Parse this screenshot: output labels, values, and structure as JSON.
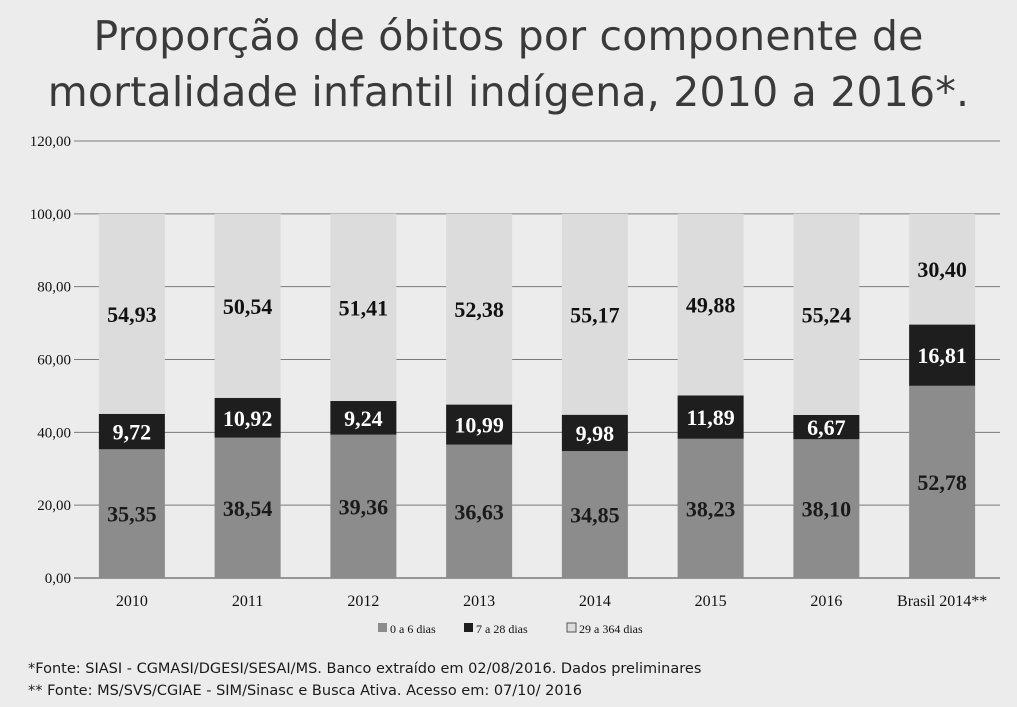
{
  "title_line1": "Proporção de óbitos por componente de",
  "title_line2": "mortalidade infantil indígena, 2010 a 2016*.",
  "footnotes": [
    "*Fonte: SIASI - CGMASI/DGESI/SESAI/MS. Banco extraído em 02/08/2016. Dados preliminares",
    "** Fonte: MS/SVS/CGIAE - SIM/Sinasc e Busca Ativa. Acesso em:  07/10/ 2016"
  ],
  "colors": {
    "series1": "#8c8c8c",
    "series2": "#1e1e1e",
    "series3": "#dcdcdc",
    "grid": "#7a7a7a"
  },
  "chart_data": {
    "type": "bar",
    "stacked": true,
    "categories": [
      "2010",
      "2011",
      "2012",
      "2013",
      "2014",
      "2015",
      "2016",
      "Brasil 2014**"
    ],
    "series": [
      {
        "name": "0 a 6 dias",
        "values": [
          35.35,
          38.54,
          39.36,
          36.63,
          34.85,
          38.23,
          38.1,
          52.78
        ],
        "labels": [
          "35,35",
          "38,54",
          "39,36",
          "36,63",
          "34,85",
          "38,23",
          "38,10",
          "52,78"
        ]
      },
      {
        "name": "7 a 28 dias",
        "values": [
          9.72,
          10.92,
          9.24,
          10.99,
          9.98,
          11.89,
          6.67,
          16.81
        ],
        "labels": [
          "9,72",
          "10,92",
          "9,24",
          "10,99",
          "9,98",
          "11,89",
          "6,67",
          "16,81"
        ]
      },
      {
        "name": "29 a 364 dias",
        "values": [
          54.93,
          50.54,
          51.41,
          52.38,
          55.17,
          49.88,
          55.24,
          30.4
        ],
        "labels": [
          "54,93",
          "50,54",
          "51,41",
          "52,38",
          "55,17",
          "49,88",
          "55,24",
          "30,40"
        ]
      }
    ],
    "ylim": [
      0,
      120
    ],
    "yticks": [
      "0,00",
      "20,00",
      "40,00",
      "60,00",
      "80,00",
      "100,00",
      "120,00"
    ],
    "grid": true,
    "legend": "bottom"
  }
}
